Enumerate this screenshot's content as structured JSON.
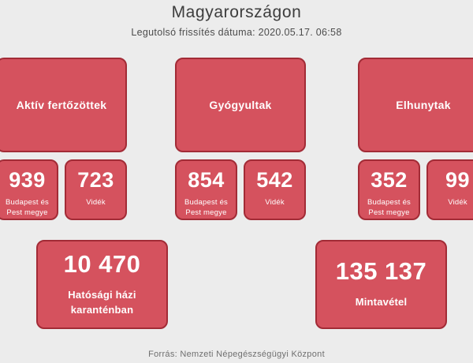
{
  "header": {
    "title": "Magyarországon",
    "subtitle": "Legutolsó frissítés dátuma: 2020.05.17. 06:58"
  },
  "shared": {
    "budapest_label": "Budapest és Pest megye",
    "videk_label": "Vidék"
  },
  "groups": [
    {
      "title": "Aktív fertőzöttek",
      "budapest_value": "939",
      "videk_value": "723"
    },
    {
      "title": "Gyógyultak",
      "budapest_value": "854",
      "videk_value": "542"
    },
    {
      "title": "Elhunytak",
      "budapest_value": "352",
      "videk_value": "99"
    }
  ],
  "bottom_cards": [
    {
      "value": "10 470",
      "label": "Hatósági házi karanténban"
    },
    {
      "value": "135 137",
      "label": "Mintavétel"
    }
  ],
  "footer": {
    "text": "Forrás: Nemzeti Népegészségügyi Központ"
  },
  "colors": {
    "page_background": "#ececec",
    "card_fill": "#d5525e",
    "card_border": "#a22b36",
    "card_text": "#ffffff",
    "title_text": "#3d3d3d",
    "subtitle_text": "#4c4c4c",
    "footer_text": "#6f6f6f"
  }
}
